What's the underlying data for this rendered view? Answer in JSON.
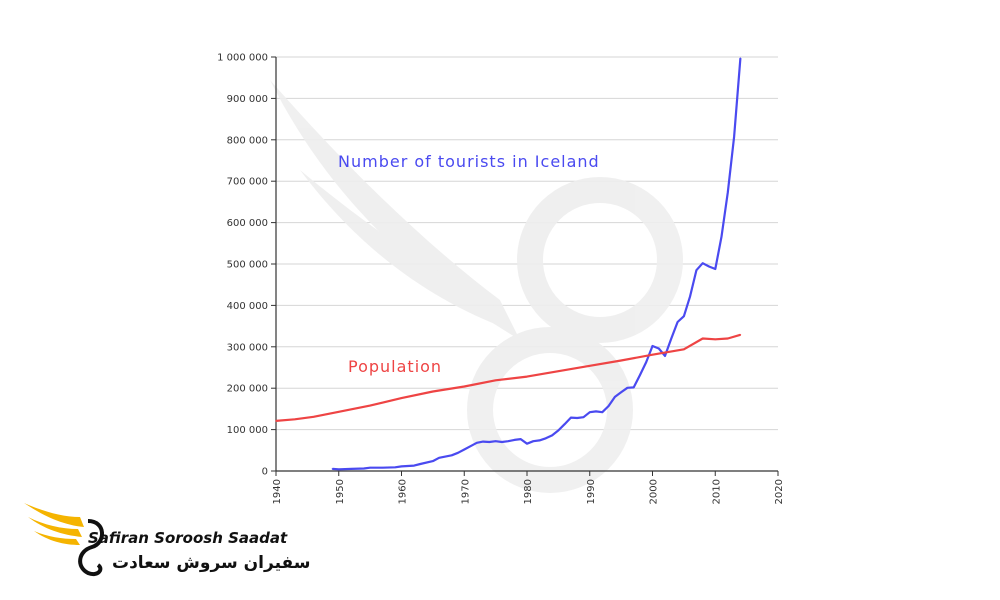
{
  "chart_data": {
    "type": "line",
    "xlim": [
      1940,
      2020
    ],
    "ylim": [
      0,
      1000000
    ],
    "x_ticks": [
      "1940",
      "1950",
      "1960",
      "1970",
      "1980",
      "1990",
      "2000",
      "2010",
      "2020"
    ],
    "y_ticks": [
      "0",
      "100 000",
      "200 000",
      "300 000",
      "400 000",
      "500 000",
      "600 000",
      "700 000",
      "800 000",
      "900 000",
      "1 000 000"
    ],
    "grid": true,
    "series": [
      {
        "name": "Number of tourists in Iceland",
        "color": "#4a4af0",
        "x": [
          1949,
          1950,
          1952,
          1954,
          1955,
          1957,
          1959,
          1960,
          1962,
          1963,
          1965,
          1966,
          1968,
          1969,
          1970,
          1971,
          1972,
          1973,
          1974,
          1975,
          1976,
          1977,
          1978,
          1979,
          1980,
          1981,
          1982,
          1983,
          1984,
          1985,
          1986,
          1987,
          1988,
          1989,
          1990,
          1991,
          1992,
          1993,
          1994,
          1995,
          1996,
          1997,
          1998,
          1999,
          2000,
          2001,
          2002,
          2003,
          2004,
          2005,
          2006,
          2007,
          2008,
          2009,
          2010,
          2011,
          2012,
          2013,
          2014
        ],
        "y": [
          5000,
          4000,
          5000,
          6000,
          8000,
          8000,
          9000,
          11000,
          13000,
          17000,
          24000,
          32000,
          38000,
          44000,
          52000,
          60000,
          68000,
          71000,
          70000,
          72000,
          70000,
          72000,
          75000,
          77000,
          66000,
          72000,
          74000,
          79000,
          86000,
          98000,
          113000,
          129000,
          128000,
          130000,
          142000,
          144000,
          142000,
          157000,
          179000,
          190000,
          201000,
          202000,
          232000,
          263000,
          302000,
          296000,
          278000,
          320000,
          360000,
          374000,
          422000,
          485000,
          502000,
          494000,
          488000,
          566000,
          673000,
          807000,
          997000
        ]
      },
      {
        "name": "Population",
        "color": "#ee4444",
        "x": [
          1940,
          1943,
          1946,
          1950,
          1955,
          1960,
          1965,
          1970,
          1975,
          1980,
          1985,
          1990,
          1995,
          2000,
          2005,
          2008,
          2010,
          2012,
          2014
        ],
        "y": [
          121000,
          125000,
          131000,
          143000,
          158000,
          176000,
          192000,
          204000,
          219000,
          228000,
          241000,
          254000,
          267000,
          281000,
          294000,
          320000,
          318000,
          320000,
          329000
        ]
      }
    ]
  },
  "brand": {
    "name_en": "Safiran Soroosh Saadat",
    "name_fa": "سفیران سروش سعادت",
    "primary_color": "#f5b400"
  }
}
